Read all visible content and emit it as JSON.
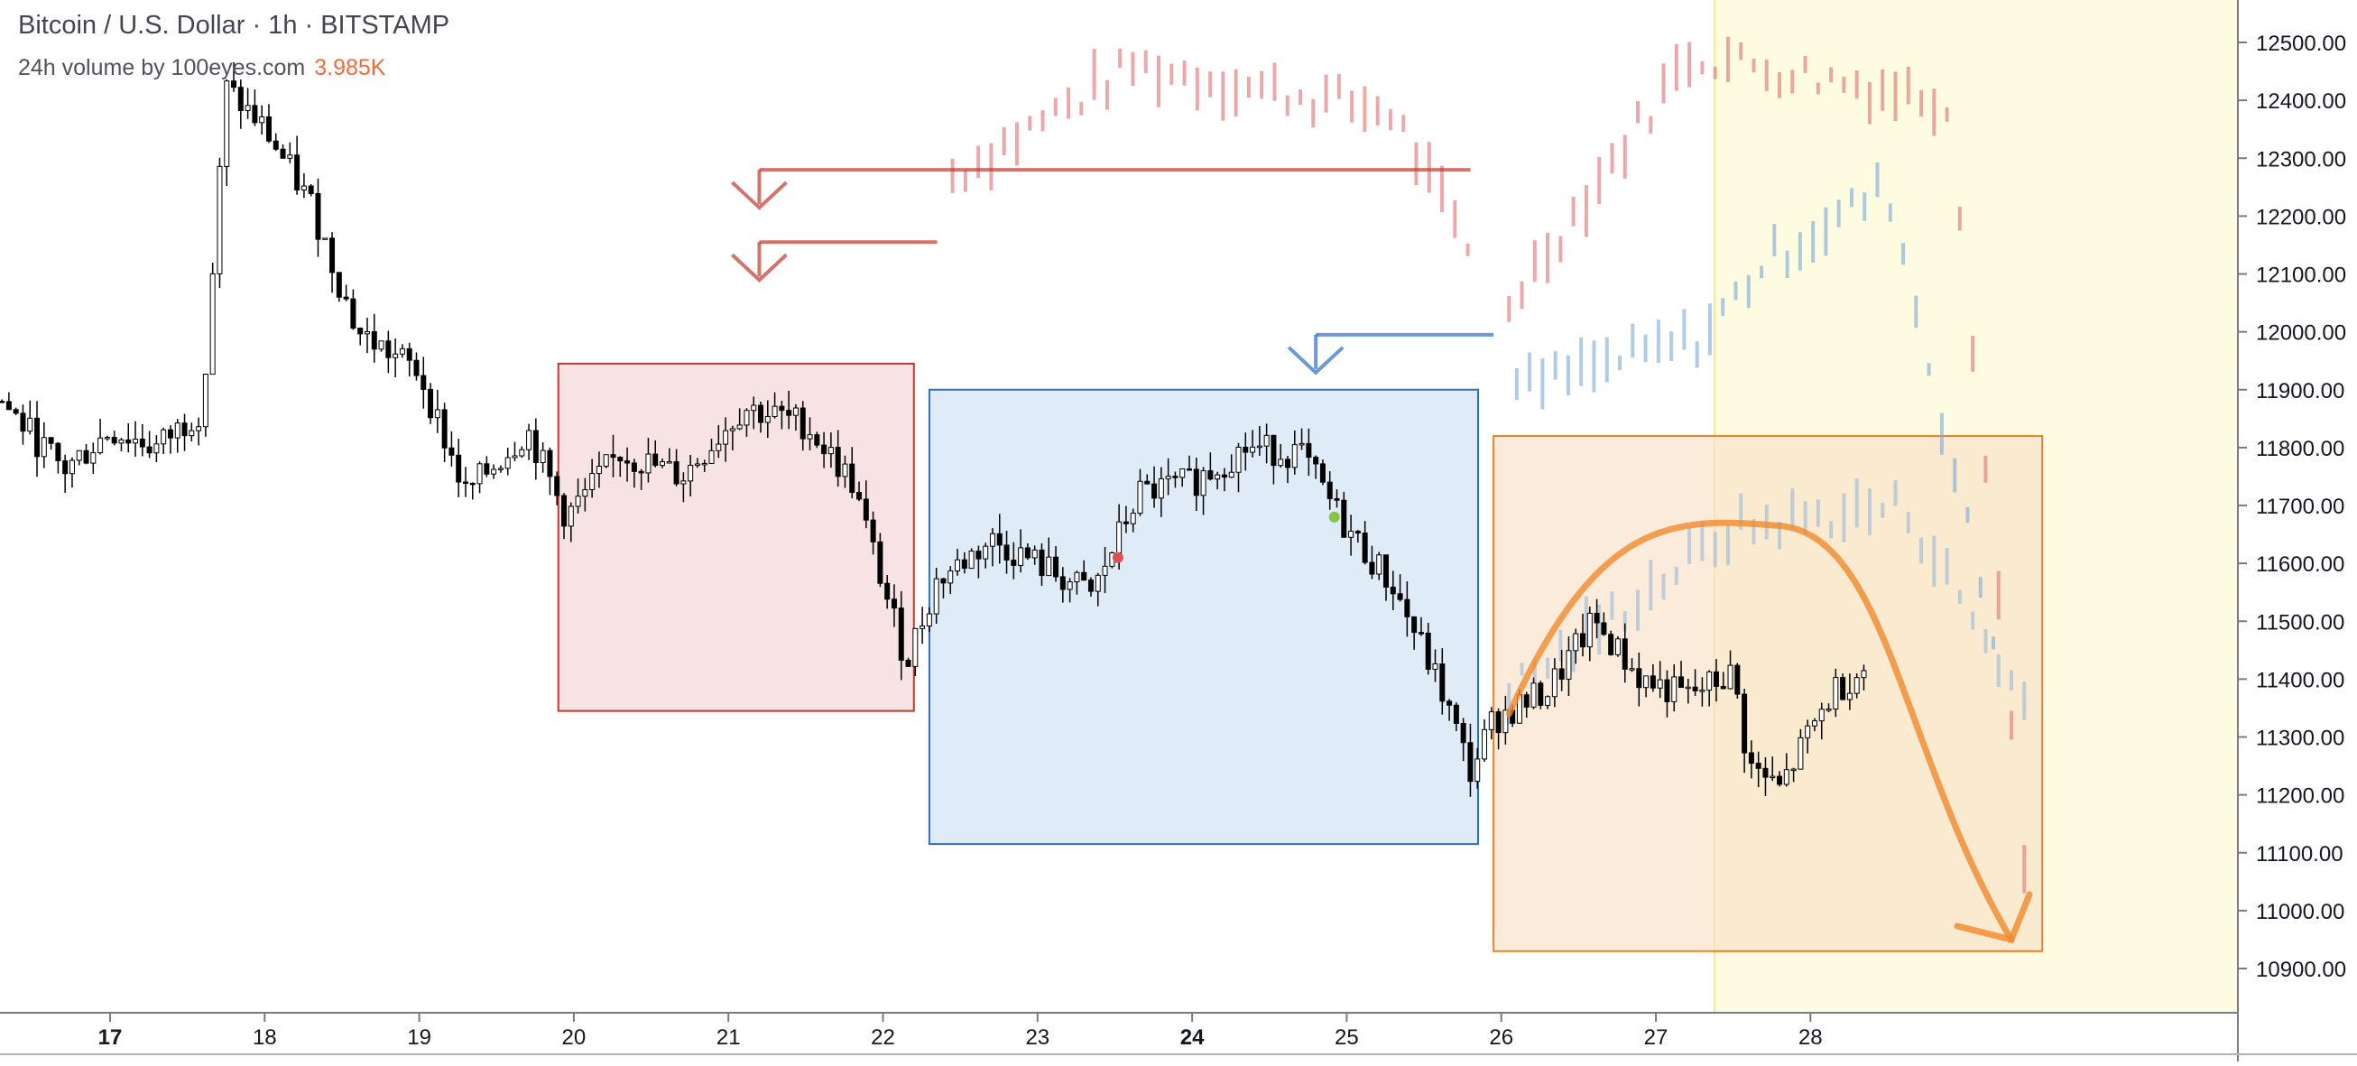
{
  "header": {
    "title": "Bitcoin / U.S. Dollar · 1h · BITSTAMP",
    "volume_label": "24h volume by 100eyes.com",
    "volume_value": "3.985K"
  },
  "colors": {
    "candle": "#000000",
    "ghost_red": "#e07a7a",
    "ghost_blue": "#7aa8d8",
    "box_red_fill": "#f2d0d0",
    "box_red_stroke": "#c0392b",
    "box_blue_fill": "#d2e2f4",
    "box_blue_stroke": "#2f6fc2",
    "box_orange_fill": "#f8e0c8",
    "box_orange_stroke": "#e8812f",
    "yellow_zone": "#fdfbe0",
    "arrow_orange": "#f08a2c",
    "red_dot": "#e05050",
    "green_dot": "#8bc34a"
  },
  "chart_data": {
    "type": "candlestick",
    "symbol": "Bitcoin / U.S. Dollar",
    "interval": "1h",
    "exchange": "BITSTAMP",
    "x_axis": {
      "tick_labels": [
        "17",
        "18",
        "19",
        "20",
        "21",
        "22",
        "23",
        "24",
        "25",
        "26",
        "27",
        "28"
      ],
      "bold_labels": [
        "17",
        "24"
      ]
    },
    "y_axis": {
      "range": [
        10850,
        12560
      ],
      "tick_labels": [
        "12500.00",
        "12400.00",
        "12300.00",
        "12200.00",
        "12100.00",
        "12000.00",
        "11900.00",
        "11800.00",
        "11700.00",
        "11600.00",
        "11500.00",
        "11400.00",
        "11300.00",
        "11200.00",
        "11100.00",
        "11000.00",
        "10900.00"
      ]
    },
    "price_path_day": [
      16.3,
      16.7,
      17.0,
      17.3,
      17.6,
      17.75,
      18.0,
      18.3,
      18.6,
      19.0,
      19.3,
      19.7,
      19.95,
      20.3,
      20.7,
      21.1,
      21.5,
      21.8,
      22.15,
      22.35,
      22.7,
      23.0,
      23.35,
      23.65,
      24.0,
      24.35,
      24.7,
      25.0,
      25.3,
      25.6,
      25.8,
      25.95,
      26.3,
      26.6,
      26.9,
      27.2,
      27.5,
      27.6,
      27.8,
      28.0,
      28.15,
      28.35
    ],
    "price_path_value": [
      11880,
      11760,
      11830,
      11800,
      11870,
      12420,
      12350,
      12220,
      12000,
      11930,
      11720,
      11830,
      11680,
      11790,
      11750,
      11870,
      11840,
      11740,
      11430,
      11570,
      11640,
      11600,
      11545,
      11720,
      11740,
      11800,
      11790,
      11660,
      11560,
      11390,
      11240,
      11330,
      11380,
      11500,
      11400,
      11370,
      11410,
      11250,
      11210,
      11310,
      11380,
      11420
    ],
    "boxes": [
      {
        "name": "red",
        "day_range": [
          19.9,
          22.2
        ],
        "price_range": [
          11345,
          11945
        ]
      },
      {
        "name": "blue",
        "day_range": [
          22.3,
          25.85
        ],
        "price_range": [
          11115,
          11900
        ]
      },
      {
        "name": "orange",
        "day_range": [
          25.95,
          29.5
        ],
        "price_range": [
          10930,
          11820
        ]
      }
    ],
    "yellow_zone_from_day": 27.38,
    "ghost_red_projection": {
      "segments": [
        {
          "day": [
            22.45,
            25.8
          ],
          "value": [
            12270,
            12460,
            12130
          ]
        },
        {
          "day": [
            26.05,
            29.4
          ],
          "value": [
            12050,
            12480,
            11050
          ]
        }
      ]
    },
    "ghost_blue_projection": {
      "day": [
        26.1,
        29.2
      ],
      "value": [
        11900,
        12250,
        11450
      ]
    },
    "orange_overlay": {
      "day": [
        26.05,
        29.4
      ],
      "value": [
        11660,
        11700,
        11350
      ]
    },
    "projection_arrow_curve": {
      "start": [
        26.05,
        11340
      ],
      "peak": [
        27.8,
        11665
      ],
      "end": [
        29.3,
        10950
      ]
    },
    "level_lines": [
      {
        "color": "red",
        "value": 12280,
        "day_range": [
          21.2,
          25.8
        ],
        "marker_day": 21.2
      },
      {
        "color": "red",
        "value": 12155,
        "day_range": [
          21.2,
          22.35
        ],
        "marker_day": 21.2
      },
      {
        "color": "blue",
        "value": 11995,
        "day_range": [
          24.8,
          25.95
        ],
        "marker_day": 24.8
      }
    ],
    "markers": [
      {
        "color": "red",
        "day": 23.52,
        "value": 11610
      },
      {
        "color": "green",
        "day": 24.92,
        "value": 11680
      }
    ]
  }
}
